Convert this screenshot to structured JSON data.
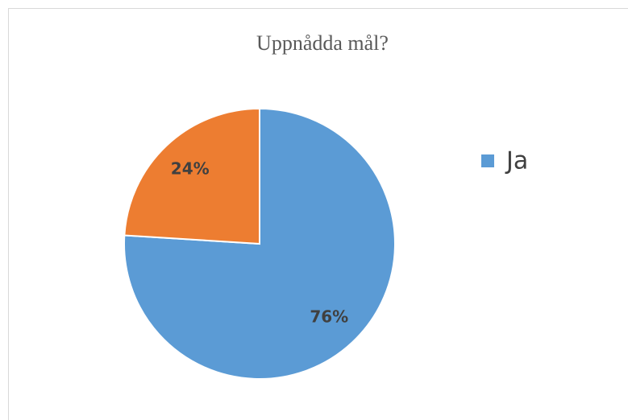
{
  "chart_data": {
    "type": "pie",
    "title": "Uppnådda mål?",
    "categories": [
      "Ja",
      null
    ],
    "values": [
      76,
      24
    ],
    "value_labels": [
      "76%",
      "24%"
    ],
    "colors": [
      "#5b9bd5",
      "#ed7d31"
    ],
    "legend": "right"
  }
}
